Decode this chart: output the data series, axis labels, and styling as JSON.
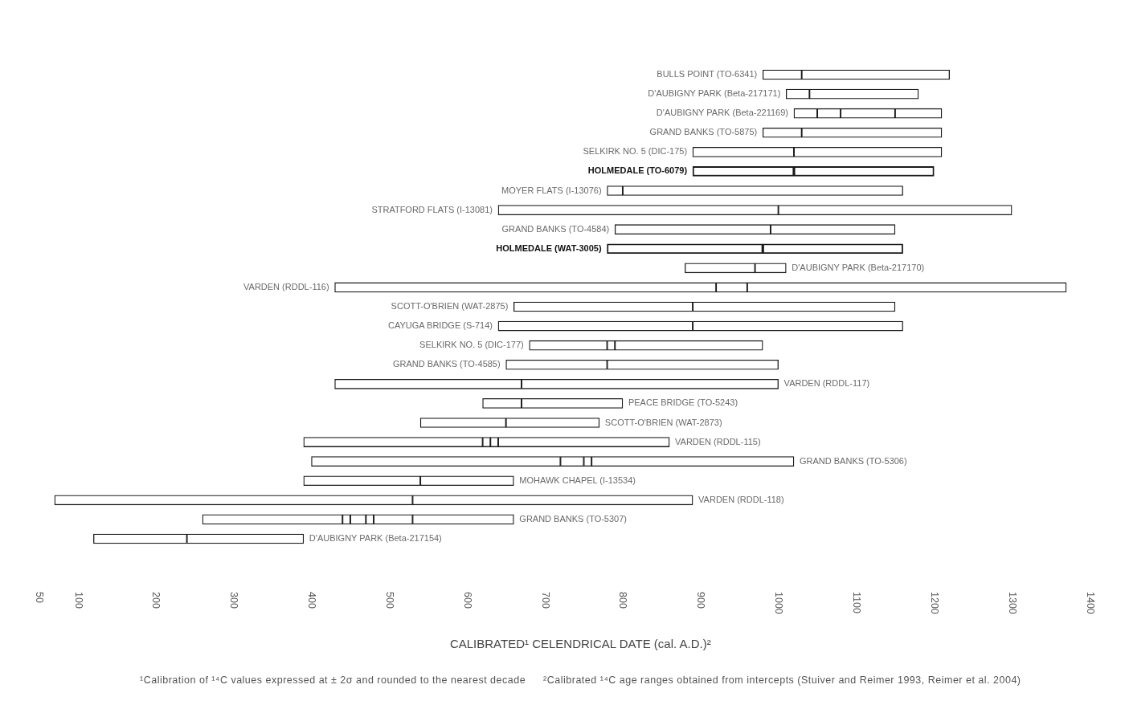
{
  "chart_data": {
    "type": "bar",
    "orientation": "horizontal",
    "categories": [
      "BULLS POINT (TO-6341)",
      "D'AUBIGNY PARK (Beta-217171)",
      "D'AUBIGNY PARK (Beta-221169)",
      "GRAND BANKS (TO-5875)",
      "SELKIRK NO. 5 (DIC-175)",
      "HOLMEDALE (TO-6079)",
      "MOYER FLATS (I-13076)",
      "STRATFORD FLATS (I-13081)",
      "GRAND BANKS (TO-4584)",
      "HOLMEDALE (WAT-3005)",
      "D'AUBIGNY PARK (Beta-217170)",
      "VARDEN (RDDL-116)",
      "SCOTT-O'BRIEN (WAT-2875)",
      "CAYUGA BRIDGE (S-714)",
      "SELKIRK NO. 5 (DIC-177)",
      "GRAND BANKS (TO-4585)",
      "VARDEN (RDDL-117)",
      "PEACE BRIDGE (TO-5243)",
      "SCOTT-O'BRIEN (WAT-2873)",
      "VARDEN (RDDL-115)",
      "GRAND BANKS (TO-5306)",
      "MOHAWK CHAPEL (I-13534)",
      "VARDEN (RDDL-118)",
      "GRAND BANKS (TO-5307)",
      "D'AUBIGNY PARK (Beta-217154)"
    ],
    "series": [
      {
        "color": "#ffffff",
        "base": [
          980,
          1010,
          1020,
          980,
          890,
          890,
          780,
          640,
          790,
          780,
          880,
          430,
          660,
          640,
          680,
          650,
          430,
          620,
          540,
          390,
          400,
          390,
          70,
          260,
          120
        ],
        "values": [
          50,
          30,
          30,
          50,
          130,
          130,
          20,
          360,
          200,
          200,
          90,
          490,
          230,
          250,
          100,
          130,
          240,
          50,
          110,
          230,
          320,
          150,
          460,
          180,
          120
        ]
      },
      {
        "color": "#ffffff",
        "base": [
          1030,
          1040,
          1050,
          1030,
          1020,
          1020,
          800,
          1000,
          990,
          980,
          970,
          920,
          890,
          890,
          780,
          780,
          670,
          670,
          650,
          620,
          720,
          540,
          530,
          440,
          240
        ],
        "values": [
          190,
          140,
          30,
          180,
          190,
          180,
          360,
          300,
          160,
          180,
          40,
          40,
          260,
          270,
          10,
          220,
          330,
          130,
          120,
          10,
          30,
          120,
          360,
          10,
          150
        ]
      },
      {
        "color": "#ffffff",
        "base": [
          null,
          null,
          1080,
          null,
          null,
          null,
          null,
          null,
          null,
          null,
          null,
          960,
          null,
          null,
          790,
          null,
          null,
          null,
          null,
          630,
          750,
          null,
          null,
          450,
          null
        ],
        "values": [
          null,
          null,
          70,
          null,
          null,
          null,
          null,
          null,
          null,
          null,
          null,
          410,
          null,
          null,
          190,
          null,
          null,
          null,
          null,
          10,
          10,
          null,
          null,
          20,
          null
        ]
      },
      {
        "color": "#ffffff",
        "base": [
          null,
          null,
          1150,
          null,
          null,
          null,
          null,
          null,
          null,
          null,
          null,
          null,
          null,
          null,
          null,
          null,
          null,
          null,
          null,
          640,
          760,
          null,
          null,
          470,
          null
        ],
        "values": [
          null,
          null,
          60,
          null,
          null,
          null,
          null,
          null,
          null,
          null,
          null,
          null,
          null,
          null,
          null,
          null,
          null,
          null,
          null,
          220,
          260,
          null,
          null,
          10,
          null
        ]
      },
      {
        "color": "#ffffff",
        "base": [
          null,
          null,
          null,
          null,
          null,
          null,
          null,
          null,
          null,
          null,
          null,
          null,
          null,
          null,
          null,
          null,
          null,
          null,
          null,
          null,
          null,
          null,
          null,
          480,
          null
        ],
        "values": [
          null,
          null,
          null,
          null,
          null,
          null,
          null,
          null,
          null,
          null,
          null,
          null,
          null,
          null,
          null,
          null,
          null,
          null,
          null,
          null,
          null,
          null,
          null,
          50,
          null
        ]
      },
      {
        "color": "#ffffff",
        "base": [
          null,
          null,
          null,
          null,
          null,
          null,
          null,
          null,
          null,
          null,
          null,
          null,
          null,
          null,
          null,
          null,
          null,
          null,
          null,
          null,
          null,
          null,
          null,
          530,
          null
        ],
        "values": [
          null,
          null,
          null,
          null,
          null,
          null,
          null,
          null,
          null,
          null,
          null,
          null,
          null,
          null,
          null,
          null,
          null,
          null,
          null,
          null,
          null,
          null,
          null,
          130,
          null
        ]
      }
    ],
    "xlim": [
      50,
      1400
    ],
    "xticks": [
      50,
      100,
      200,
      300,
      400,
      500,
      600,
      700,
      800,
      900,
      1000,
      1100,
      1200,
      1300,
      1400
    ],
    "xlabel": "CALIBRATED¹ CELENDRICAL DATE (cal. A.D.)²",
    "annotations": [
      "¹Calibration of ¹⁴C values expressed at ± 2σ and rounded to the nearest decade",
      "²Calibrated ¹⁴C age ranges obtained from intercepts (Stuiver and Reimer 1993, Reimer et al. 2004)"
    ]
  }
}
